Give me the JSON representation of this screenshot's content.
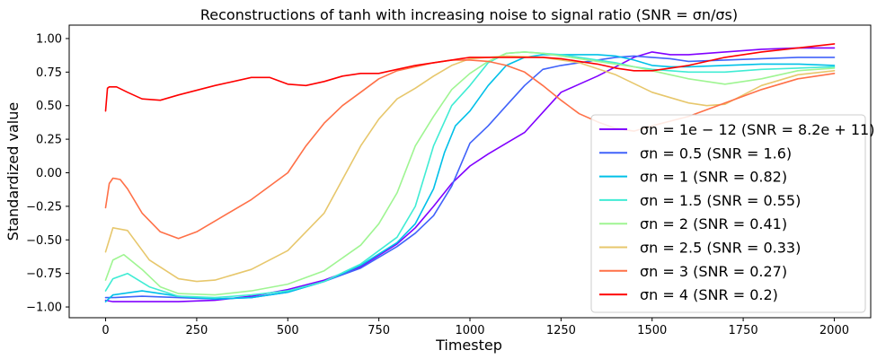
{
  "chart_data": {
    "type": "line",
    "title": "Reconstructions of tanh with increasing noise to signal ratio (SNR = σn/σs)",
    "xlabel": "Timestep",
    "ylabel": "Standardized value",
    "xlim": [
      -100,
      2100
    ],
    "ylim": [
      -1.08,
      1.1
    ],
    "xticks": [
      0,
      250,
      500,
      750,
      1000,
      1250,
      1500,
      1750,
      2000
    ],
    "yticks": [
      -1.0,
      -0.75,
      -0.5,
      -0.25,
      0.0,
      0.25,
      0.5,
      0.75,
      1.0
    ],
    "xtick_labels": [
      "0",
      "250",
      "500",
      "750",
      "1000",
      "1250",
      "1500",
      "1750",
      "2000"
    ],
    "ytick_labels": [
      "−1.00",
      "−0.75",
      "−0.50",
      "−0.25",
      "0.00",
      "0.25",
      "0.50",
      "0.75",
      "1.00"
    ],
    "grid": false,
    "legend_position": "lower-right",
    "series": [
      {
        "name": "σn = 1e − 12 (SNR = 8.2e + 11)",
        "color": "#8000ff",
        "x": [
          0,
          20,
          100,
          200,
          300,
          400,
          500,
          600,
          700,
          800,
          850,
          900,
          950,
          1000,
          1050,
          1100,
          1150,
          1200,
          1250,
          1300,
          1350,
          1400,
          1450,
          1500,
          1550,
          1600,
          1700,
          1800,
          1900,
          2000
        ],
        "y": [
          -0.95,
          -0.96,
          -0.96,
          -0.96,
          -0.95,
          -0.92,
          -0.87,
          -0.8,
          -0.7,
          -0.53,
          -0.41,
          -0.25,
          -0.08,
          0.05,
          0.14,
          0.22,
          0.3,
          0.45,
          0.6,
          0.66,
          0.72,
          0.79,
          0.86,
          0.9,
          0.88,
          0.88,
          0.9,
          0.92,
          0.93,
          0.93
        ]
      },
      {
        "name": "σn = 0.5 (SNR = 1.6)",
        "color": "#4062fa",
        "x": [
          0,
          20,
          100,
          200,
          300,
          400,
          500,
          600,
          700,
          800,
          850,
          900,
          950,
          1000,
          1050,
          1100,
          1150,
          1200,
          1250,
          1300,
          1350,
          1400,
          1450,
          1500,
          1550,
          1600,
          1700,
          1800,
          1900,
          2000
        ],
        "y": [
          -0.93,
          -0.93,
          -0.92,
          -0.93,
          -0.94,
          -0.93,
          -0.89,
          -0.81,
          -0.71,
          -0.55,
          -0.45,
          -0.32,
          -0.1,
          0.22,
          0.35,
          0.5,
          0.65,
          0.77,
          0.8,
          0.82,
          0.84,
          0.86,
          0.87,
          0.86,
          0.85,
          0.83,
          0.84,
          0.85,
          0.86,
          0.86
        ]
      },
      {
        "name": "σn = 1 (SNR = 0.82)",
        "color": "#00c0e8",
        "x": [
          0,
          20,
          100,
          200,
          300,
          400,
          500,
          600,
          700,
          800,
          850,
          900,
          930,
          960,
          1000,
          1050,
          1100,
          1150,
          1200,
          1250,
          1300,
          1350,
          1400,
          1450,
          1500,
          1550,
          1600,
          1700,
          1800,
          1900,
          2000
        ],
        "y": [
          -0.96,
          -0.91,
          -0.88,
          -0.92,
          -0.94,
          -0.93,
          -0.89,
          -0.81,
          -0.69,
          -0.52,
          -0.38,
          -0.12,
          0.15,
          0.35,
          0.46,
          0.65,
          0.8,
          0.86,
          0.88,
          0.88,
          0.88,
          0.88,
          0.87,
          0.84,
          0.8,
          0.79,
          0.79,
          0.8,
          0.81,
          0.81,
          0.8
        ]
      },
      {
        "name": "σn = 1.5 (SNR = 0.55)",
        "color": "#40ecd4",
        "x": [
          0,
          20,
          60,
          120,
          200,
          300,
          400,
          500,
          600,
          700,
          800,
          850,
          900,
          950,
          1000,
          1050,
          1100,
          1150,
          1200,
          1250,
          1300,
          1350,
          1400,
          1450,
          1500,
          1550,
          1600,
          1700,
          1800,
          1900,
          2000
        ],
        "y": [
          -0.88,
          -0.79,
          -0.75,
          -0.85,
          -0.92,
          -0.93,
          -0.91,
          -0.88,
          -0.81,
          -0.68,
          -0.48,
          -0.25,
          0.2,
          0.5,
          0.65,
          0.82,
          0.89,
          0.9,
          0.89,
          0.88,
          0.86,
          0.84,
          0.82,
          0.79,
          0.77,
          0.76,
          0.75,
          0.75,
          0.77,
          0.78,
          0.79
        ]
      },
      {
        "name": "σn = 2 (SNR = 0.41)",
        "color": "#9ff592",
        "x": [
          0,
          20,
          50,
          100,
          150,
          200,
          300,
          400,
          500,
          600,
          700,
          750,
          800,
          850,
          900,
          950,
          1000,
          1050,
          1100,
          1150,
          1200,
          1250,
          1300,
          1350,
          1400,
          1450,
          1500,
          1550,
          1600,
          1700,
          1800,
          1900,
          2000
        ],
        "y": [
          -0.8,
          -0.65,
          -0.61,
          -0.72,
          -0.85,
          -0.9,
          -0.91,
          -0.88,
          -0.83,
          -0.73,
          -0.54,
          -0.38,
          -0.15,
          0.2,
          0.42,
          0.62,
          0.74,
          0.83,
          0.89,
          0.9,
          0.89,
          0.87,
          0.85,
          0.83,
          0.81,
          0.79,
          0.76,
          0.73,
          0.7,
          0.66,
          0.7,
          0.76,
          0.78
        ]
      },
      {
        "name": "σn = 2.5 (SNR = 0.33)",
        "color": "#e7c76c",
        "x": [
          0,
          20,
          60,
          120,
          200,
          250,
          300,
          400,
          500,
          600,
          650,
          700,
          750,
          800,
          850,
          900,
          950,
          1000,
          1050,
          1100,
          1200,
          1300,
          1400,
          1500,
          1600,
          1650,
          1700,
          1750,
          1800,
          1900,
          2000
        ],
        "y": [
          -0.59,
          -0.41,
          -0.43,
          -0.65,
          -0.79,
          -0.81,
          -0.8,
          -0.72,
          -0.58,
          -0.3,
          -0.05,
          0.2,
          0.4,
          0.55,
          0.63,
          0.72,
          0.8,
          0.85,
          0.86,
          0.87,
          0.86,
          0.82,
          0.73,
          0.6,
          0.52,
          0.5,
          0.51,
          0.58,
          0.65,
          0.73,
          0.76
        ]
      },
      {
        "name": "σn = 3 (SNR = 0.27)",
        "color": "#ff7047",
        "x": [
          0,
          10,
          20,
          40,
          60,
          100,
          150,
          200,
          250,
          300,
          400,
          500,
          550,
          600,
          650,
          700,
          750,
          800,
          850,
          900,
          950,
          1000,
          1050,
          1100,
          1150,
          1200,
          1250,
          1300,
          1350,
          1400,
          1450,
          1500,
          1600,
          1700,
          1750,
          1800,
          1900,
          2000
        ],
        "y": [
          -0.26,
          -0.08,
          -0.04,
          -0.05,
          -0.12,
          -0.3,
          -0.44,
          -0.49,
          -0.44,
          -0.36,
          -0.2,
          0.0,
          0.2,
          0.37,
          0.5,
          0.6,
          0.7,
          0.76,
          0.79,
          0.82,
          0.84,
          0.84,
          0.83,
          0.8,
          0.75,
          0.65,
          0.54,
          0.44,
          0.38,
          0.33,
          0.31,
          0.35,
          0.42,
          0.52,
          0.57,
          0.62,
          0.7,
          0.74
        ]
      },
      {
        "name": "σn = 4 (SNR = 0.2)",
        "color": "#ff0000",
        "x": [
          0,
          5,
          10,
          30,
          60,
          100,
          150,
          200,
          300,
          400,
          450,
          500,
          550,
          600,
          650,
          700,
          750,
          800,
          850,
          900,
          950,
          1000,
          1050,
          1100,
          1150,
          1200,
          1250,
          1300,
          1350,
          1400,
          1450,
          1500,
          1550,
          1600,
          1700,
          1800,
          1900,
          2000
        ],
        "y": [
          0.46,
          0.63,
          0.64,
          0.64,
          0.6,
          0.55,
          0.54,
          0.58,
          0.65,
          0.71,
          0.71,
          0.66,
          0.65,
          0.68,
          0.72,
          0.74,
          0.74,
          0.77,
          0.8,
          0.82,
          0.84,
          0.86,
          0.86,
          0.86,
          0.86,
          0.86,
          0.85,
          0.83,
          0.81,
          0.78,
          0.76,
          0.76,
          0.78,
          0.8,
          0.86,
          0.9,
          0.93,
          0.96
        ]
      }
    ]
  }
}
